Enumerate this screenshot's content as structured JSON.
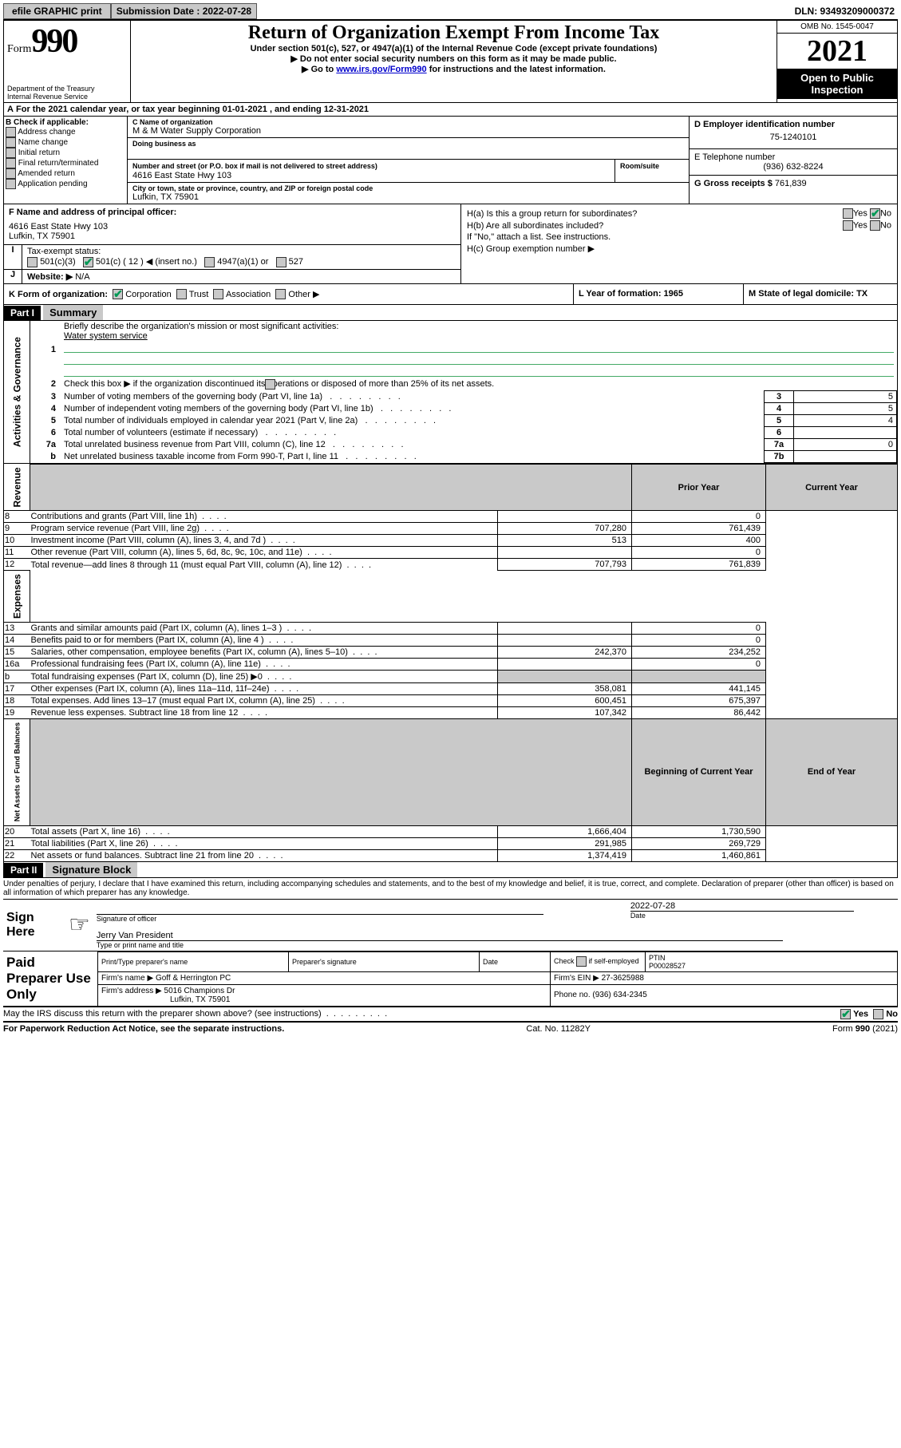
{
  "topbar": {
    "efile": "efile GRAPHIC print",
    "subdate_label": "Submission Date : 2022-07-28",
    "dln": "DLN: 93493209000372"
  },
  "header": {
    "form_label": "Form",
    "form_number": "990",
    "dept": "Department of the Treasury",
    "irs": "Internal Revenue Service",
    "title": "Return of Organization Exempt From Income Tax",
    "subtitle": "Under section 501(c), 527, or 4947(a)(1) of the Internal Revenue Code (except private foundations)",
    "line1": "▶ Do not enter social security numbers on this form as it may be made public.",
    "line2_pre": "▶ Go to ",
    "line2_link": "www.irs.gov/Form990",
    "line2_post": " for instructions and the latest information.",
    "omb": "OMB No. 1545-0047",
    "year": "2021",
    "openpub": "Open to Public Inspection"
  },
  "periodA": "For the 2021 calendar year, or tax year beginning 01-01-2021   , and ending 12-31-2021",
  "secB": {
    "label": "B Check if applicable:",
    "opts": [
      "Address change",
      "Name change",
      "Initial return",
      "Final return/terminated",
      "Amended return",
      "Application pending"
    ]
  },
  "secC": {
    "name_label": "C Name of organization",
    "name": "M & M Water Supply Corporation",
    "dba_label": "Doing business as",
    "addr_label": "Number and street (or P.O. box if mail is not delivered to street address)",
    "room_label": "Room/suite",
    "addr": "4616 East State Hwy 103",
    "city_label": "City or town, state or province, country, and ZIP or foreign postal code",
    "city": "Lufkin, TX  75901"
  },
  "secD": {
    "label": "D Employer identification number",
    "val": "75-1240101"
  },
  "secE": {
    "label": "E Telephone number",
    "val": "(936) 632-8224"
  },
  "secG": {
    "label": "G Gross receipts $",
    "val": "761,839"
  },
  "secF": {
    "label": "F Name and address of principal officer:",
    "addr1": "4616 East State Hwy 103",
    "addr2": "Lufkin, TX  75901"
  },
  "secH": {
    "ha": "H(a)  Is this a group return for subordinates?",
    "hb": "H(b)  Are all subordinates included?",
    "hnote": "If \"No,\" attach a list. See instructions.",
    "hc": "H(c)  Group exemption number ▶",
    "yes": "Yes",
    "no": "No"
  },
  "secI": {
    "label": "Tax-exempt status:",
    "o1": "501(c)(3)",
    "o2": "501(c) ( 12 ) ◀ (insert no.)",
    "o3": "4947(a)(1) or",
    "o4": "527"
  },
  "secJ": {
    "label": "Website: ▶",
    "val": "N/A"
  },
  "secK": {
    "label": "K Form of organization:",
    "o1": "Corporation",
    "o2": "Trust",
    "o3": "Association",
    "o4": "Other ▶"
  },
  "secL": {
    "label": "L Year of formation: 1965"
  },
  "secM": {
    "label": "M State of legal domicile: TX"
  },
  "part1": {
    "hdr": "Part I",
    "title": "Summary",
    "l1": "Briefly describe the organization's mission or most significant activities:",
    "l1val": "Water system service",
    "l2": "Check this box ▶        if the organization discontinued its operations or disposed of more than 25% of its net assets.",
    "rows_top": [
      {
        "n": "3",
        "d": "Number of voting members of the governing body (Part VI, line 1a)",
        "box": "3",
        "v": "5"
      },
      {
        "n": "4",
        "d": "Number of independent voting members of the governing body (Part VI, line 1b)",
        "box": "4",
        "v": "5"
      },
      {
        "n": "5",
        "d": "Total number of individuals employed in calendar year 2021 (Part V, line 2a)",
        "box": "5",
        "v": "4"
      },
      {
        "n": "6",
        "d": "Total number of volunteers (estimate if necessary)",
        "box": "6",
        "v": ""
      },
      {
        "n": "7a",
        "d": "Total unrelated business revenue from Part VIII, column (C), line 12",
        "box": "7a",
        "v": "0"
      },
      {
        "n": "b",
        "d": "Net unrelated business taxable income from Form 990-T, Part I, line 11",
        "box": "7b",
        "v": ""
      }
    ],
    "col_prior": "Prior Year",
    "col_curr": "Current Year",
    "vlabels": {
      "gov": "Activities & Governance",
      "rev": "Revenue",
      "exp": "Expenses",
      "net": "Net Assets or Fund Balances"
    },
    "revenue": [
      {
        "n": "8",
        "d": "Contributions and grants (Part VIII, line 1h)",
        "p": "",
        "c": "0"
      },
      {
        "n": "9",
        "d": "Program service revenue (Part VIII, line 2g)",
        "p": "707,280",
        "c": "761,439"
      },
      {
        "n": "10",
        "d": "Investment income (Part VIII, column (A), lines 3, 4, and 7d )",
        "p": "513",
        "c": "400"
      },
      {
        "n": "11",
        "d": "Other revenue (Part VIII, column (A), lines 5, 6d, 8c, 9c, 10c, and 11e)",
        "p": "",
        "c": "0"
      },
      {
        "n": "12",
        "d": "Total revenue—add lines 8 through 11 (must equal Part VIII, column (A), line 12)",
        "p": "707,793",
        "c": "761,839"
      }
    ],
    "expenses": [
      {
        "n": "13",
        "d": "Grants and similar amounts paid (Part IX, column (A), lines 1–3 )",
        "p": "",
        "c": "0"
      },
      {
        "n": "14",
        "d": "Benefits paid to or for members (Part IX, column (A), line 4 )",
        "p": "",
        "c": "0"
      },
      {
        "n": "15",
        "d": "Salaries, other compensation, employee benefits (Part IX, column (A), lines 5–10)",
        "p": "242,370",
        "c": "234,252"
      },
      {
        "n": "16a",
        "d": "Professional fundraising fees (Part IX, column (A), line 11e)",
        "p": "",
        "c": "0"
      },
      {
        "n": "b",
        "d": "Total fundraising expenses (Part IX, column (D), line 25) ▶0",
        "p": "SHADE",
        "c": "SHADE"
      },
      {
        "n": "17",
        "d": "Other expenses (Part IX, column (A), lines 11a–11d, 11f–24e)",
        "p": "358,081",
        "c": "441,145"
      },
      {
        "n": "18",
        "d": "Total expenses. Add lines 13–17 (must equal Part IX, column (A), line 25)",
        "p": "600,451",
        "c": "675,397"
      },
      {
        "n": "19",
        "d": "Revenue less expenses. Subtract line 18 from line 12",
        "p": "107,342",
        "c": "86,442"
      }
    ],
    "col_begin": "Beginning of Current Year",
    "col_end": "End of Year",
    "netassets": [
      {
        "n": "20",
        "d": "Total assets (Part X, line 16)",
        "p": "1,666,404",
        "c": "1,730,590"
      },
      {
        "n": "21",
        "d": "Total liabilities (Part X, line 26)",
        "p": "291,985",
        "c": "269,729"
      },
      {
        "n": "22",
        "d": "Net assets or fund balances. Subtract line 21 from line 20",
        "p": "1,374,419",
        "c": "1,460,861"
      }
    ]
  },
  "part2": {
    "hdr": "Part II",
    "title": "Signature Block",
    "decl": "Under penalties of perjury, I declare that I have examined this return, including accompanying schedules and statements, and to the best of my knowledge and belief, it is true, correct, and complete. Declaration of preparer (other than officer) is based on all information of which preparer has any knowledge."
  },
  "sign": {
    "label": "Sign Here",
    "sig_officer": "Signature of officer",
    "date": "Date",
    "date_val": "2022-07-28",
    "name": "Jerry Van  President",
    "name_label": "Type or print name and title"
  },
  "preparer": {
    "label": "Paid Preparer Use Only",
    "c1": "Print/Type preparer's name",
    "c2": "Preparer's signature",
    "c3": "Date",
    "c4a": "Check",
    "c4b": "if self-employed",
    "c5": "PTIN",
    "c5v": "P00028527",
    "firm_name_l": "Firm's name    ▶",
    "firm_name": "Goff & Herrington PC",
    "firm_ein_l": "Firm's EIN ▶",
    "firm_ein": "27-3625988",
    "firm_addr_l": "Firm's address ▶",
    "firm_addr": "5016 Champions Dr",
    "firm_city": "Lufkin, TX  75901",
    "phone_l": "Phone no.",
    "phone": "(936) 634-2345"
  },
  "discuss": {
    "q": "May the IRS discuss this return with the preparer shown above? (see instructions)",
    "yes": "Yes",
    "no": "No"
  },
  "footer": {
    "left": "For Paperwork Reduction Act Notice, see the separate instructions.",
    "mid": "Cat. No. 11282Y",
    "right": "Form 990 (2021)"
  }
}
